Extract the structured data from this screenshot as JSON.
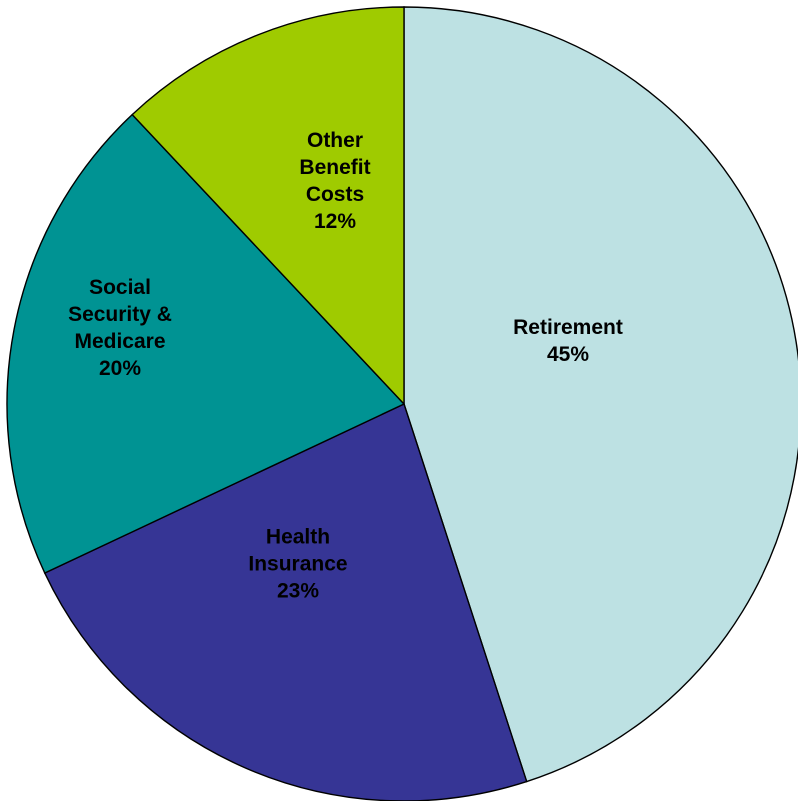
{
  "chart_data": {
    "type": "pie",
    "start_angle_deg": 0,
    "direction": "clockwise",
    "legend": "none",
    "slices": [
      {
        "label": [
          "Retirement",
          "45%"
        ],
        "value": 45,
        "color": "#BDE1E3"
      },
      {
        "label": [
          "Health",
          "Insurance",
          "23%"
        ],
        "value": 23,
        "color": "#363595"
      },
      {
        "label": [
          "Social",
          "Security &",
          "Medicare",
          "20%"
        ],
        "value": 20,
        "color": "#009393"
      },
      {
        "label": [
          "Other",
          "Benefit",
          "Costs",
          "12%"
        ],
        "value": 12,
        "color": "#9FCB00"
      }
    ]
  }
}
